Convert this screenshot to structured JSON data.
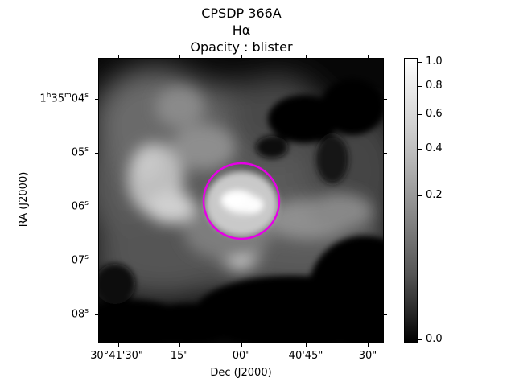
{
  "title": {
    "line1": "CPSDP 366A",
    "line2": "Hα",
    "line3": "Opacity : blister"
  },
  "axes": {
    "x_title": "Dec (J2000)",
    "y_title": "RA (J2000)",
    "x_ticks": [
      "30°41'30\"",
      "15\"",
      "00\"",
      "40'45\"",
      "30\""
    ],
    "y_ticks": [
      "1h35m04s",
      "05s",
      "06s",
      "07s",
      "08s"
    ]
  },
  "colorbar": {
    "ticks": [
      "1.0",
      "0.8",
      "0.6",
      "0.4",
      "0.2",
      "0.0"
    ],
    "colormap": "gray"
  },
  "overlay": {
    "circle_color": "#ff00ff"
  }
}
